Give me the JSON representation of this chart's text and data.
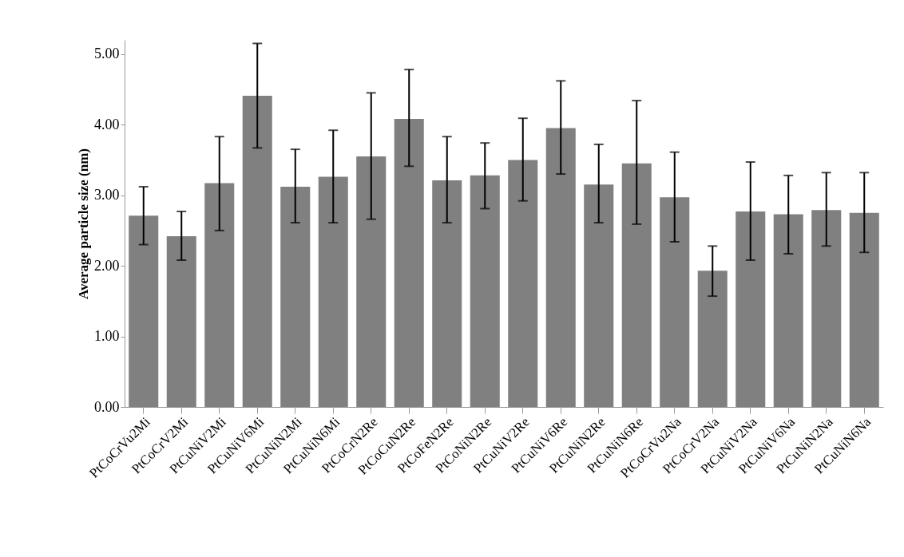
{
  "chart_data": {
    "type": "bar",
    "ylabel": "Average particle  size (nm)",
    "categories": [
      "PtCoCrVu2Mi",
      "PtCoCrV2Mi",
      "PtCuNiV2Mi",
      "PtCuNiV6Mi",
      "PtCuNiN2Mi",
      "PtCuNiN6Mi",
      "PtCoCrN2Re",
      "PtCoCuN2Re",
      "PtCoFeN2Re",
      "PtCoNiN2Re",
      "PtCuNiV2Re",
      "PtCuNiV6Re",
      "PtCuNiN2Re",
      "PtCuNiN6Re",
      "PtCoCrVu2Na",
      "PtCoCrV2Na",
      "PtCuNiV2Na",
      "PtCuNiV6Na",
      "PtCuNiN2Na",
      "PtCuNiN6Na"
    ],
    "values": [
      2.71,
      2.42,
      3.17,
      4.41,
      3.12,
      3.26,
      3.55,
      4.08,
      3.21,
      3.28,
      3.5,
      3.95,
      3.15,
      3.45,
      2.97,
      1.93,
      2.77,
      2.73,
      2.79,
      2.75
    ],
    "errors": [
      [
        2.3,
        3.12
      ],
      [
        2.08,
        2.77
      ],
      [
        2.5,
        3.83
      ],
      [
        3.67,
        5.15
      ],
      [
        2.61,
        3.65
      ],
      [
        2.61,
        3.92
      ],
      [
        2.66,
        4.45
      ],
      [
        3.41,
        4.78
      ],
      [
        2.61,
        3.83
      ],
      [
        2.81,
        3.74
      ],
      [
        2.92,
        4.09
      ],
      [
        3.3,
        4.62
      ],
      [
        2.61,
        3.72
      ],
      [
        2.59,
        4.34
      ],
      [
        2.34,
        3.61
      ],
      [
        1.57,
        2.28
      ],
      [
        2.08,
        3.47
      ],
      [
        2.17,
        3.28
      ],
      [
        2.28,
        3.32
      ],
      [
        2.19,
        3.32
      ]
    ],
    "color": "#808080",
    "ylim": [
      0,
      5.2
    ],
    "yticks": [
      {
        "value": 0,
        "label": "0.00"
      },
      {
        "value": 1,
        "label": "1.00"
      },
      {
        "value": 2,
        "label": "2.00"
      },
      {
        "value": 3,
        "label": "3.00"
      },
      {
        "value": 4,
        "label": "4.00"
      },
      {
        "value": 5,
        "label": "5.00"
      }
    ],
    "grid": false
  }
}
